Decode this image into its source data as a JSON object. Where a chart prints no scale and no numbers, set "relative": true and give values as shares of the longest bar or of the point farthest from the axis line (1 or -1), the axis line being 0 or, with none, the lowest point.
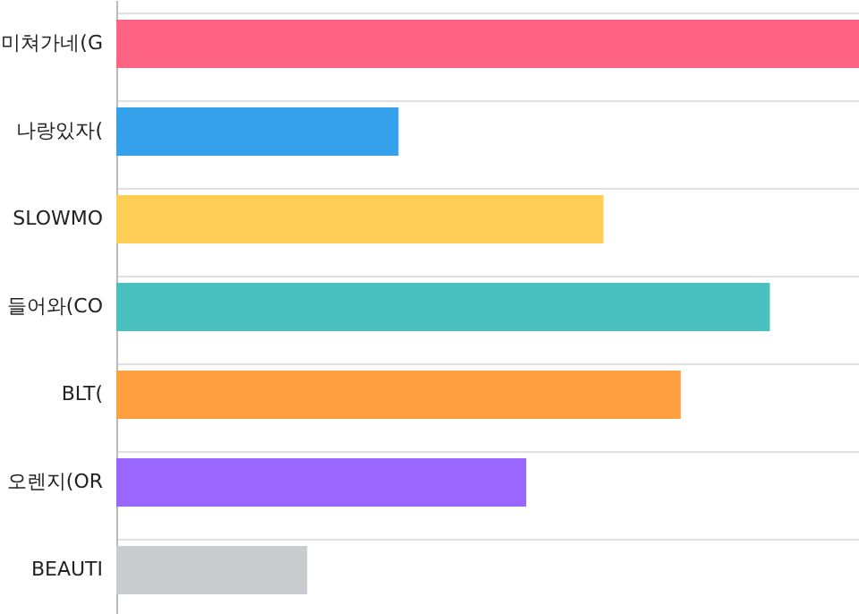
{
  "chart_data": {
    "type": "bar",
    "orientation": "horizontal",
    "relative": true,
    "grid": "y",
    "categories": [
      "미쳐가네(G",
      "나랑있자(",
      "SLOWMO",
      "들어와(CO",
      "BLT(",
      "오렌지(OR",
      "BEAUTI"
    ],
    "values": [
      1,
      0.38,
      0.656,
      0.88,
      0.76,
      0.552,
      0.257
    ],
    "colors": [
      "#ff6384",
      "#36a2eb",
      "#ffce56",
      "#4bc0c0",
      "#ff9f40",
      "#9966ff",
      "#c9cbcf"
    ]
  }
}
